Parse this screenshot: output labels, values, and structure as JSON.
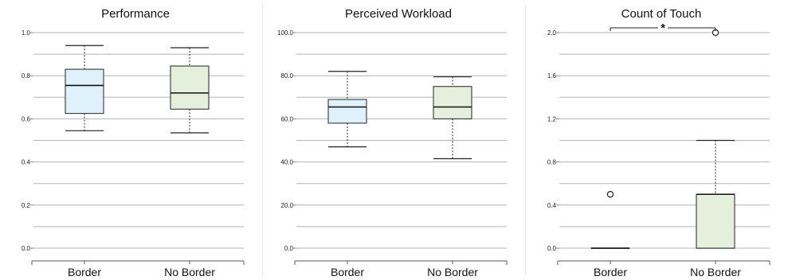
{
  "chart_data": [
    {
      "type": "boxplot",
      "title": "Performance",
      "categories": [
        "Border",
        "No Border"
      ],
      "ylim": [
        0,
        1
      ],
      "yticks": [
        "0.0",
        "0.2",
        "0.4",
        "0.6",
        "0.8",
        "1.0"
      ],
      "grid": true,
      "boxes": [
        {
          "category": "Border",
          "min": 0.545,
          "q1": 0.625,
          "median": 0.755,
          "q3": 0.83,
          "max": 0.94,
          "outliers": [],
          "color": "#dff2fb"
        },
        {
          "category": "No Border",
          "min": 0.535,
          "q1": 0.645,
          "median": 0.72,
          "q3": 0.845,
          "max": 0.93,
          "outliers": [],
          "color": "#e4f0dc"
        }
      ]
    },
    {
      "type": "boxplot",
      "title": "Perceived Workload",
      "categories": [
        "Border",
        "No Border"
      ],
      "ylim": [
        0,
        100
      ],
      "yticks": [
        "0.0",
        "20.0",
        "40.0",
        "60.0",
        "80.0",
        "100.0"
      ],
      "grid": true,
      "boxes": [
        {
          "category": "Border",
          "min": 47,
          "q1": 58,
          "median": 65.5,
          "q3": 69,
          "max": 82,
          "outliers": [],
          "color": "#dff2fb"
        },
        {
          "category": "No Border",
          "min": 41.5,
          "q1": 60,
          "median": 65.5,
          "q3": 75,
          "max": 79.5,
          "outliers": [],
          "color": "#e4f0dc"
        }
      ]
    },
    {
      "type": "boxplot",
      "title": "Count of Touch",
      "categories": [
        "Border",
        "No Border"
      ],
      "ylim": [
        0,
        2
      ],
      "yticks": [
        "0.0",
        "0.4",
        "0.8",
        "1.2",
        "1.6",
        "2.0"
      ],
      "grid": true,
      "significance": "*",
      "boxes": [
        {
          "category": "Border",
          "min": 0,
          "q1": 0,
          "median": 0,
          "q3": 0,
          "max": 0,
          "outliers": [
            0.5
          ],
          "color": "#dff2fb"
        },
        {
          "category": "No Border",
          "min": 0,
          "q1": 0,
          "median": 0.5,
          "q3": 0.5,
          "max": 1.0,
          "outliers": [
            2.0
          ],
          "color": "#e4f0dc"
        }
      ]
    }
  ]
}
